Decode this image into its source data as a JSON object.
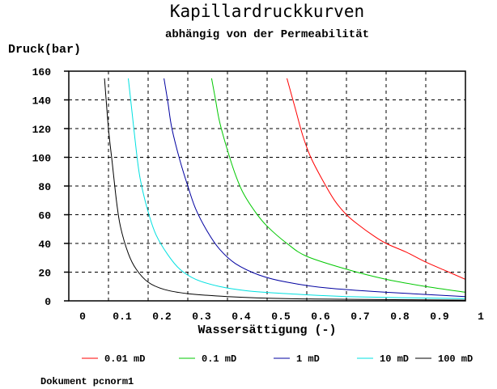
{
  "chart_data": {
    "type": "line",
    "title": "Kapillardruckkurven",
    "subtitle": "abhängig von der Permeabilität",
    "ylabel": "Druck(bar)",
    "xlabel": "Wassersättigung (-)",
    "xlim": [
      0,
      1
    ],
    "ylim": [
      0,
      160
    ],
    "xticks": [
      0,
      0.1,
      0.2,
      0.3,
      0.4,
      0.5,
      0.6,
      0.7,
      0.8,
      0.9,
      1
    ],
    "xtick_labels": [
      "0",
      "0.1",
      "0.2",
      "0.3",
      "0.4",
      "0.5",
      "0.6",
      "0.7",
      "0.8",
      "0.9",
      "1"
    ],
    "yticks": [
      0,
      20,
      40,
      60,
      80,
      100,
      120,
      140,
      160
    ],
    "yticks_labels": [
      "0",
      "20",
      "40",
      "60",
      "80",
      "100",
      "120",
      "140",
      "160"
    ],
    "grid": true,
    "legend_position": "bottom",
    "series": [
      {
        "name": "0.01 mD",
        "color": "#ff0000",
        "x": [
          0.55,
          0.57,
          0.59,
          0.61,
          0.64,
          0.67,
          0.7,
          0.73,
          0.77,
          0.8,
          0.85,
          0.9,
          0.95,
          1.0
        ],
        "y": [
          155,
          135,
          115,
          100,
          84,
          70,
          60,
          53,
          45,
          40,
          34,
          27,
          21,
          15
        ]
      },
      {
        "name": "0.1 mD",
        "color": "#00c800",
        "x": [
          0.36,
          0.37,
          0.38,
          0.4,
          0.42,
          0.44,
          0.47,
          0.5,
          0.55,
          0.6,
          0.7,
          0.8,
          0.9,
          1.0
        ],
        "y": [
          155,
          140,
          125,
          105,
          88,
          75,
          62,
          52,
          40,
          31,
          22,
          15,
          10,
          6
        ]
      },
      {
        "name": "1 mD",
        "color": "#0000a0",
        "x": [
          0.24,
          0.25,
          0.26,
          0.28,
          0.3,
          0.32,
          0.35,
          0.38,
          0.42,
          0.48,
          0.55,
          0.65,
          0.8,
          1.0
        ],
        "y": [
          155,
          138,
          120,
          98,
          80,
          64,
          48,
          36,
          26,
          18,
          13,
          9,
          6,
          3
        ]
      },
      {
        "name": "10 mD",
        "color": "#00e0e0",
        "x": [
          0.15,
          0.16,
          0.17,
          0.18,
          0.2,
          0.22,
          0.25,
          0.28,
          0.32,
          0.38,
          0.45,
          0.55,
          0.7,
          1.0
        ],
        "y": [
          155,
          130,
          105,
          85,
          62,
          46,
          32,
          22,
          15,
          10,
          7,
          5,
          3,
          1.5
        ]
      },
      {
        "name": "100 mD",
        "color": "#000000",
        "x": [
          0.09,
          0.1,
          0.11,
          0.12,
          0.13,
          0.15,
          0.17,
          0.2,
          0.24,
          0.3,
          0.4,
          0.55,
          0.75,
          1.0
        ],
        "y": [
          155,
          120,
          95,
          70,
          52,
          33,
          22,
          13,
          8,
          5,
          3,
          1.5,
          1,
          0.5
        ]
      }
    ]
  },
  "footer": "Dokument pcnorm1"
}
